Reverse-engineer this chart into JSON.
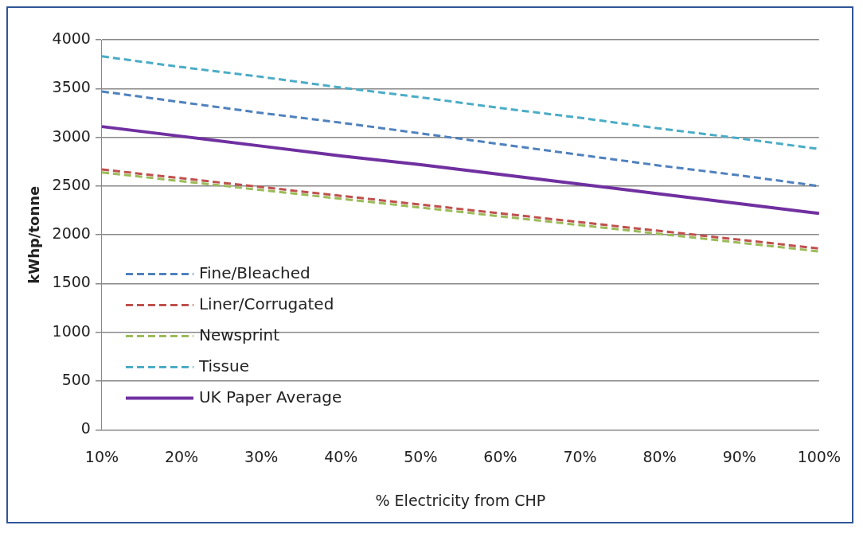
{
  "chart_data": {
    "type": "line",
    "xlabel": "% Electricity from CHP",
    "ylabel": "kWhp/tonne",
    "categories": [
      "10%",
      "20%",
      "30%",
      "40%",
      "50%",
      "60%",
      "70%",
      "80%",
      "90%",
      "100%"
    ],
    "series": [
      {
        "name": "Fine/Bleached",
        "color": "#4f81bd",
        "line_style": "dashed",
        "values": [
          3470,
          3360,
          3250,
          3150,
          3040,
          2930,
          2820,
          2710,
          2610,
          2500
        ]
      },
      {
        "name": "Liner/Corrugated",
        "color": "#c0504d",
        "line_style": "dashed",
        "values": [
          2670,
          2580,
          2490,
          2400,
          2310,
          2220,
          2130,
          2040,
          1950,
          1860
        ]
      },
      {
        "name": "Newsprint",
        "color": "#9bbb59",
        "line_style": "dashed",
        "values": [
          2640,
          2550,
          2460,
          2370,
          2280,
          2190,
          2100,
          2010,
          1920,
          1830
        ]
      },
      {
        "name": "Tissue",
        "color": "#4bacc6",
        "line_style": "dashed",
        "values": [
          3830,
          3720,
          3620,
          3510,
          3410,
          3300,
          3200,
          3090,
          2990,
          2880
        ]
      },
      {
        "name": "UK Paper Average",
        "color": "#7030a0",
        "line_style": "solid",
        "values": [
          3110,
          3010,
          2910,
          2810,
          2720,
          2620,
          2520,
          2420,
          2320,
          2220
        ]
      }
    ],
    "ylim": [
      0,
      4000
    ],
    "yticks": [
      0,
      500,
      1000,
      1500,
      2000,
      2500,
      3000,
      3500,
      4000
    ],
    "grid": "y",
    "legend": "bottom left",
    "marker": "none"
  }
}
